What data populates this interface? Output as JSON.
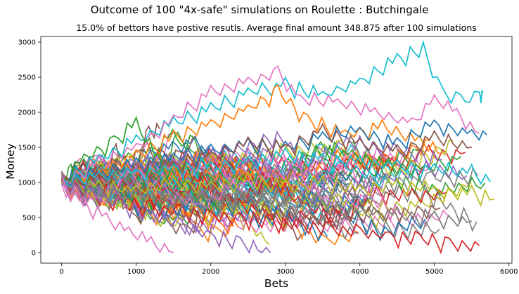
{
  "chart_data": {
    "type": "line",
    "title": "Outcome of 100 \"4x-safe\" simulations on Roulette : Butchingale",
    "subtitle": "15.0% of bettors have postive resutls. Average final amount 348.875 after 100 simulations",
    "xlabel": "Bets",
    "ylabel": "Money",
    "xlim": [
      -280,
      6040
    ],
    "ylim": [
      -150,
      3080
    ],
    "xticks": [
      0,
      1000,
      2000,
      3000,
      4000,
      5000,
      6000
    ],
    "yticks": [
      0,
      500,
      1000,
      1500,
      2000,
      2500,
      3000
    ],
    "grid": false,
    "num_series": 100,
    "start_value": 1000,
    "colors": [
      "#1f77b4",
      "#ff7f0e",
      "#2ca02c",
      "#d62728",
      "#9467bd",
      "#8c564b",
      "#e377c2",
      "#7f7f7f",
      "#bcbd22",
      "#17becf"
    ],
    "series": [
      {
        "color": "#17becf",
        "x": [
          0,
          500,
          1000,
          1500,
          2000,
          2500,
          3000,
          3500,
          4000,
          4500,
          4850,
          5100,
          5350,
          5600,
          5650
        ],
        "y": [
          1000,
          1350,
          1600,
          1850,
          2050,
          2300,
          2400,
          2250,
          2450,
          2750,
          2930,
          2300,
          2150,
          2250,
          2280
        ]
      },
      {
        "color": "#e377c2",
        "x": [
          0,
          500,
          1000,
          1500,
          2000,
          2500,
          2900,
          3200,
          3700,
          4200,
          4700,
          5000,
          5300,
          5600
        ],
        "y": [
          1000,
          1300,
          1500,
          1900,
          2300,
          2450,
          2580,
          2200,
          2150,
          2000,
          1850,
          2200,
          2000,
          1700
        ]
      },
      {
        "color": "#ff7f0e",
        "x": [
          0,
          500,
          1000,
          1500,
          2000,
          2500,
          2900,
          3300,
          3800,
          4300,
          4800,
          5100
        ],
        "y": [
          1000,
          1150,
          1400,
          1650,
          1850,
          2050,
          2300,
          1900,
          1700,
          1800,
          1600,
          1400
        ]
      },
      {
        "color": "#1f77b4",
        "x": [
          0,
          500,
          1000,
          1500,
          2000,
          2500,
          3000,
          3500,
          4000,
          4500,
          5000,
          5500,
          5700
        ],
        "y": [
          1000,
          1150,
          1250,
          1350,
          1450,
          1550,
          1500,
          1650,
          1750,
          1550,
          1850,
          1700,
          1680
        ]
      },
      {
        "color": "#2ca02c",
        "x": [
          0,
          300,
          700,
          1000,
          1300,
          1700,
          2100
        ],
        "y": [
          1000,
          1350,
          1600,
          1850,
          1300,
          900,
          600
        ]
      },
      {
        "color": "#8c564b",
        "x": [
          0,
          500,
          1000,
          1500,
          2000,
          2500,
          3000,
          3500,
          4000,
          4500,
          5000,
          5500
        ],
        "y": [
          1000,
          1050,
          1200,
          1250,
          1400,
          1550,
          1500,
          1750,
          1550,
          1450,
          1650,
          1500
        ]
      },
      {
        "color": "#bcbd22",
        "x": [
          0,
          500,
          1000,
          1500,
          2000,
          2500,
          3000,
          3500,
          4000,
          4500,
          5000,
          5500,
          5800
        ],
        "y": [
          1000,
          950,
          900,
          1000,
          950,
          1050,
          950,
          1000,
          900,
          1000,
          900,
          850,
          760
        ]
      },
      {
        "color": "#17becf",
        "x": [
          0,
          500,
          1000,
          1500,
          2000,
          2500,
          3000,
          3500,
          4000,
          4500,
          5000,
          5500,
          5750
        ],
        "y": [
          1000,
          1100,
          1150,
          1200,
          1250,
          1300,
          1400,
          1350,
          1300,
          1250,
          1200,
          1150,
          1010
        ]
      },
      {
        "color": "#d62728",
        "x": [
          0,
          400,
          800,
          1200,
          1600,
          2000,
          2400,
          2800,
          3200,
          3600,
          4000,
          4400,
          4800,
          5200,
          5600
        ],
        "y": [
          1000,
          850,
          700,
          650,
          600,
          550,
          500,
          450,
          400,
          350,
          300,
          250,
          200,
          150,
          100
        ]
      },
      {
        "color": "#9467bd",
        "x": [
          0,
          400,
          800,
          1200,
          1600,
          2000,
          2400,
          2800
        ],
        "y": [
          1000,
          850,
          700,
          550,
          400,
          250,
          150,
          0
        ]
      },
      {
        "color": "#7f7f7f",
        "x": [
          0,
          500,
          1000,
          1500,
          2000,
          2500,
          3000,
          3500,
          4000,
          4500,
          5000,
          5500
        ],
        "y": [
          1000,
          900,
          850,
          800,
          750,
          800,
          700,
          650,
          600,
          550,
          500,
          450
        ]
      },
      {
        "color": "#e377c2",
        "x": [
          0,
          300,
          600,
          900,
          1200,
          1500
        ],
        "y": [
          1000,
          700,
          500,
          300,
          150,
          0
        ]
      }
    ]
  }
}
